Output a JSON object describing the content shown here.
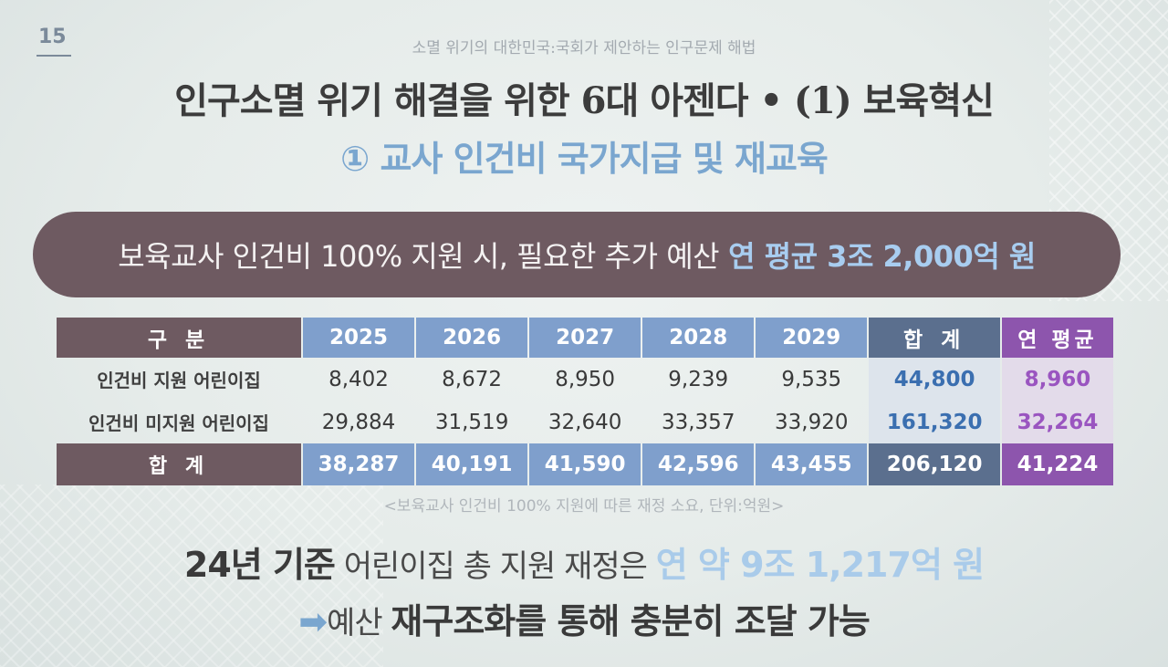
{
  "slide": {
    "page_number": "15",
    "top_subtitle": "소멸 위기의 대한민국:국회가 제안하는 인구문제 해법",
    "title": "인구소멸 위기 해결을 위한 6대 아젠다 • (1) 보육혁신",
    "subtitle": "① 교사 인건비 국가지급 및 재교육"
  },
  "banner": {
    "text": "보육교사 인건비 100% 지원 시, 필요한 추가 예산",
    "highlight": "연 평균 3조 2,000억 원"
  },
  "table": {
    "headers": [
      "구 분",
      "2025",
      "2026",
      "2027",
      "2028",
      "2029",
      "합 계",
      "연 평균"
    ],
    "rows": [
      {
        "label": "인건비 지원 어린이집",
        "values": [
          "8,402",
          "8,672",
          "8,950",
          "9,239",
          "9,535"
        ],
        "sum": "44,800",
        "avg": "8,960"
      },
      {
        "label": "인건비 미지원 어린이집",
        "values": [
          "29,884",
          "31,519",
          "32,640",
          "33,357",
          "33,920"
        ],
        "sum": "161,320",
        "avg": "32,264"
      }
    ],
    "total": {
      "label": "합 계",
      "values": [
        "38,287",
        "40,191",
        "41,590",
        "42,596",
        "43,455"
      ],
      "sum": "206,120",
      "avg": "41,224"
    }
  },
  "caption": "<보육교사 인건비 100% 지원에 따른 재정 소요, 단위:억원>",
  "conclusion": {
    "line1_bold": "24년 기준",
    "line1_normal": " 어린이집 총 지원 재정은 ",
    "line1_highlight": "연 약 9조 1,217억 원",
    "line2_arrow": "➡",
    "line2_normal": "예산 ",
    "line2_bold": "재구조화를 통해 충분히 조달 가능"
  },
  "colors": {
    "banner_bg": "#6e5a61",
    "year_header": "#7f9fcc",
    "sum_header": "#5b6f8e",
    "avg_header": "#8d55ad",
    "accent_blue": "#7aa6cf"
  }
}
